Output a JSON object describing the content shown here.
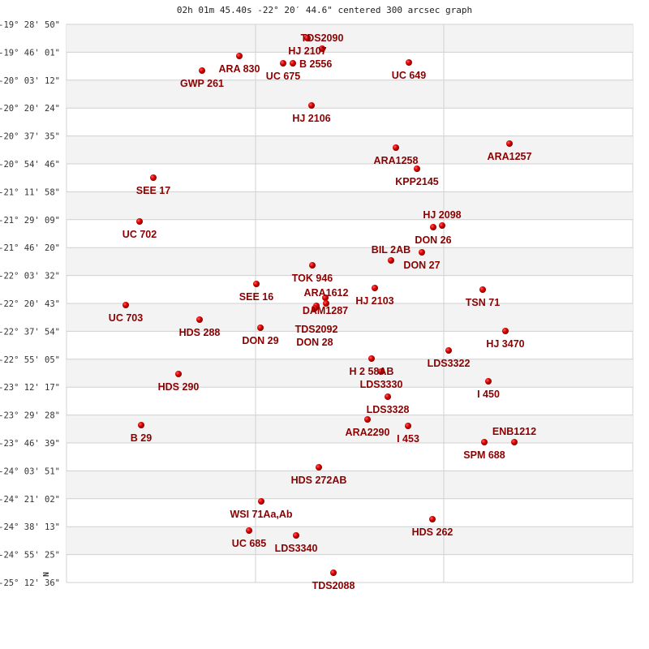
{
  "title": "02h 01m 45.40s -22° 20′ 44.6\" centered 300 arcsec graph",
  "north_label": "N",
  "colors": {
    "star": "#dd0000",
    "label": "#8b0000",
    "band": "#f3f3f3",
    "grid": "#d0d0d0"
  },
  "chart_data": {
    "type": "scatter",
    "title": "02h 01m 45.40s -22° 20′ 44.6\" centered 300 arcsec graph",
    "units": "offset in arcmin from chart left edge (x) and top edge (y)",
    "yticks": [
      "-19° 28' 50\"",
      "-19° 46' 01\"",
      "-20° 03' 12\"",
      "-20° 20' 24\"",
      "-20° 37' 35\"",
      "-20° 54' 46\"",
      "-21° 11' 58\"",
      "-21° 29' 09\"",
      "-21° 46' 20\"",
      "-22° 03' 32\"",
      "-22° 20' 43\"",
      "-22° 37' 54\"",
      "-22° 55' 05\"",
      "-23° 12' 17\"",
      "-23° 29' 28\"",
      "-23° 46' 39\"",
      "-24° 03' 51\"",
      "-24° 21' 02\"",
      "-24° 38' 13\"",
      "-24° 55' 25\"",
      "-25° 12' 36\""
    ],
    "xlim": [
      0,
      349
    ],
    "ylim": [
      0,
      344
    ],
    "points": [
      {
        "name": "HJ 2107",
        "x": 148.5,
        "y": 8.5
      },
      {
        "name": "TDS2090",
        "x": 157.5,
        "y": 15,
        "dx": 13,
        "dy": 1
      },
      {
        "name": "ARA 830",
        "x": 106.5,
        "y": 19.5
      },
      {
        "name": "UC  675",
        "x": 133.5,
        "y": 24
      },
      {
        "name": "B  2556",
        "x": 139.5,
        "y": 24
      },
      {
        "name": "UC  649",
        "x": 211,
        "y": 23.5
      },
      {
        "name": "GWP 261",
        "x": 83.5,
        "y": 28.5
      },
      {
        "name": "HJ 2106",
        "x": 151,
        "y": 50
      },
      {
        "name": "ARA1257",
        "x": 273,
        "y": 73.5
      },
      {
        "name": "ARA1258",
        "x": 203,
        "y": 76
      },
      {
        "name": "KPP2145",
        "x": 216,
        "y": 89
      },
      {
        "name": "SEE  17",
        "x": 53.5,
        "y": 94.5
      },
      {
        "name": "UC  702",
        "x": 45,
        "y": 121.5
      },
      {
        "name": "DON  26",
        "x": 226,
        "y": 125
      },
      {
        "name": "HJ 2098",
        "x": 231.5,
        "y": 124
      },
      {
        "name": "DON  27",
        "x": 219,
        "y": 140.5
      },
      {
        "name": "BIL   2AB",
        "x": 200,
        "y": 145.5
      },
      {
        "name": "TOK 946",
        "x": 151.5,
        "y": 148.5
      },
      {
        "name": "SEE  16",
        "x": 117,
        "y": 160
      },
      {
        "name": "HJ 2103",
        "x": 190,
        "y": 162.5
      },
      {
        "name": "TSN  71",
        "x": 256.5,
        "y": 163.5
      },
      {
        "name": "UC  703",
        "x": 36.5,
        "y": 173
      },
      {
        "name": "DAM1287",
        "x": 159.5,
        "y": 168.5
      },
      {
        "name": "ARA1612",
        "x": 160,
        "y": 172
      },
      {
        "name": "TDS2092",
        "x": 154,
        "y": 173.5
      },
      {
        "name": "DON  28",
        "x": 153,
        "y": 175
      },
      {
        "name": "HDS 288",
        "x": 82,
        "y": 182
      },
      {
        "name": "DON  29",
        "x": 119.5,
        "y": 187
      },
      {
        "name": "HJ 3470",
        "x": 270.5,
        "y": 189
      },
      {
        "name": "LDS3322",
        "x": 235.5,
        "y": 201
      },
      {
        "name": "H 2  58AB",
        "x": 188,
        "y": 206
      },
      {
        "name": "LDS3330",
        "x": 194,
        "y": 214
      },
      {
        "name": "HDS 290",
        "x": 69,
        "y": 215.5
      },
      {
        "name": "I   450",
        "x": 260,
        "y": 220
      },
      {
        "name": "LDS3328",
        "x": 198,
        "y": 229.5
      },
      {
        "name": "ARA2290",
        "x": 185.5,
        "y": 243.5
      },
      {
        "name": "I   453",
        "x": 210.5,
        "y": 247.5
      },
      {
        "name": "B    29",
        "x": 46,
        "y": 247
      },
      {
        "name": "SPM   688",
        "x": 257.5,
        "y": 257.5
      },
      {
        "name": "ENB1212",
        "x": 276,
        "y": 257.5
      },
      {
        "name": "HDS 272AB",
        "x": 155.5,
        "y": 273
      },
      {
        "name": "WSI  71Aa,Ab",
        "x": 120,
        "y": 294
      },
      {
        "name": "HDS 262",
        "x": 225.5,
        "y": 305
      },
      {
        "name": "UC  685",
        "x": 112.5,
        "y": 312
      },
      {
        "name": "LDS3340",
        "x": 141.5,
        "y": 315
      },
      {
        "name": "TDS2088",
        "x": 164.5,
        "y": 338
      }
    ]
  }
}
